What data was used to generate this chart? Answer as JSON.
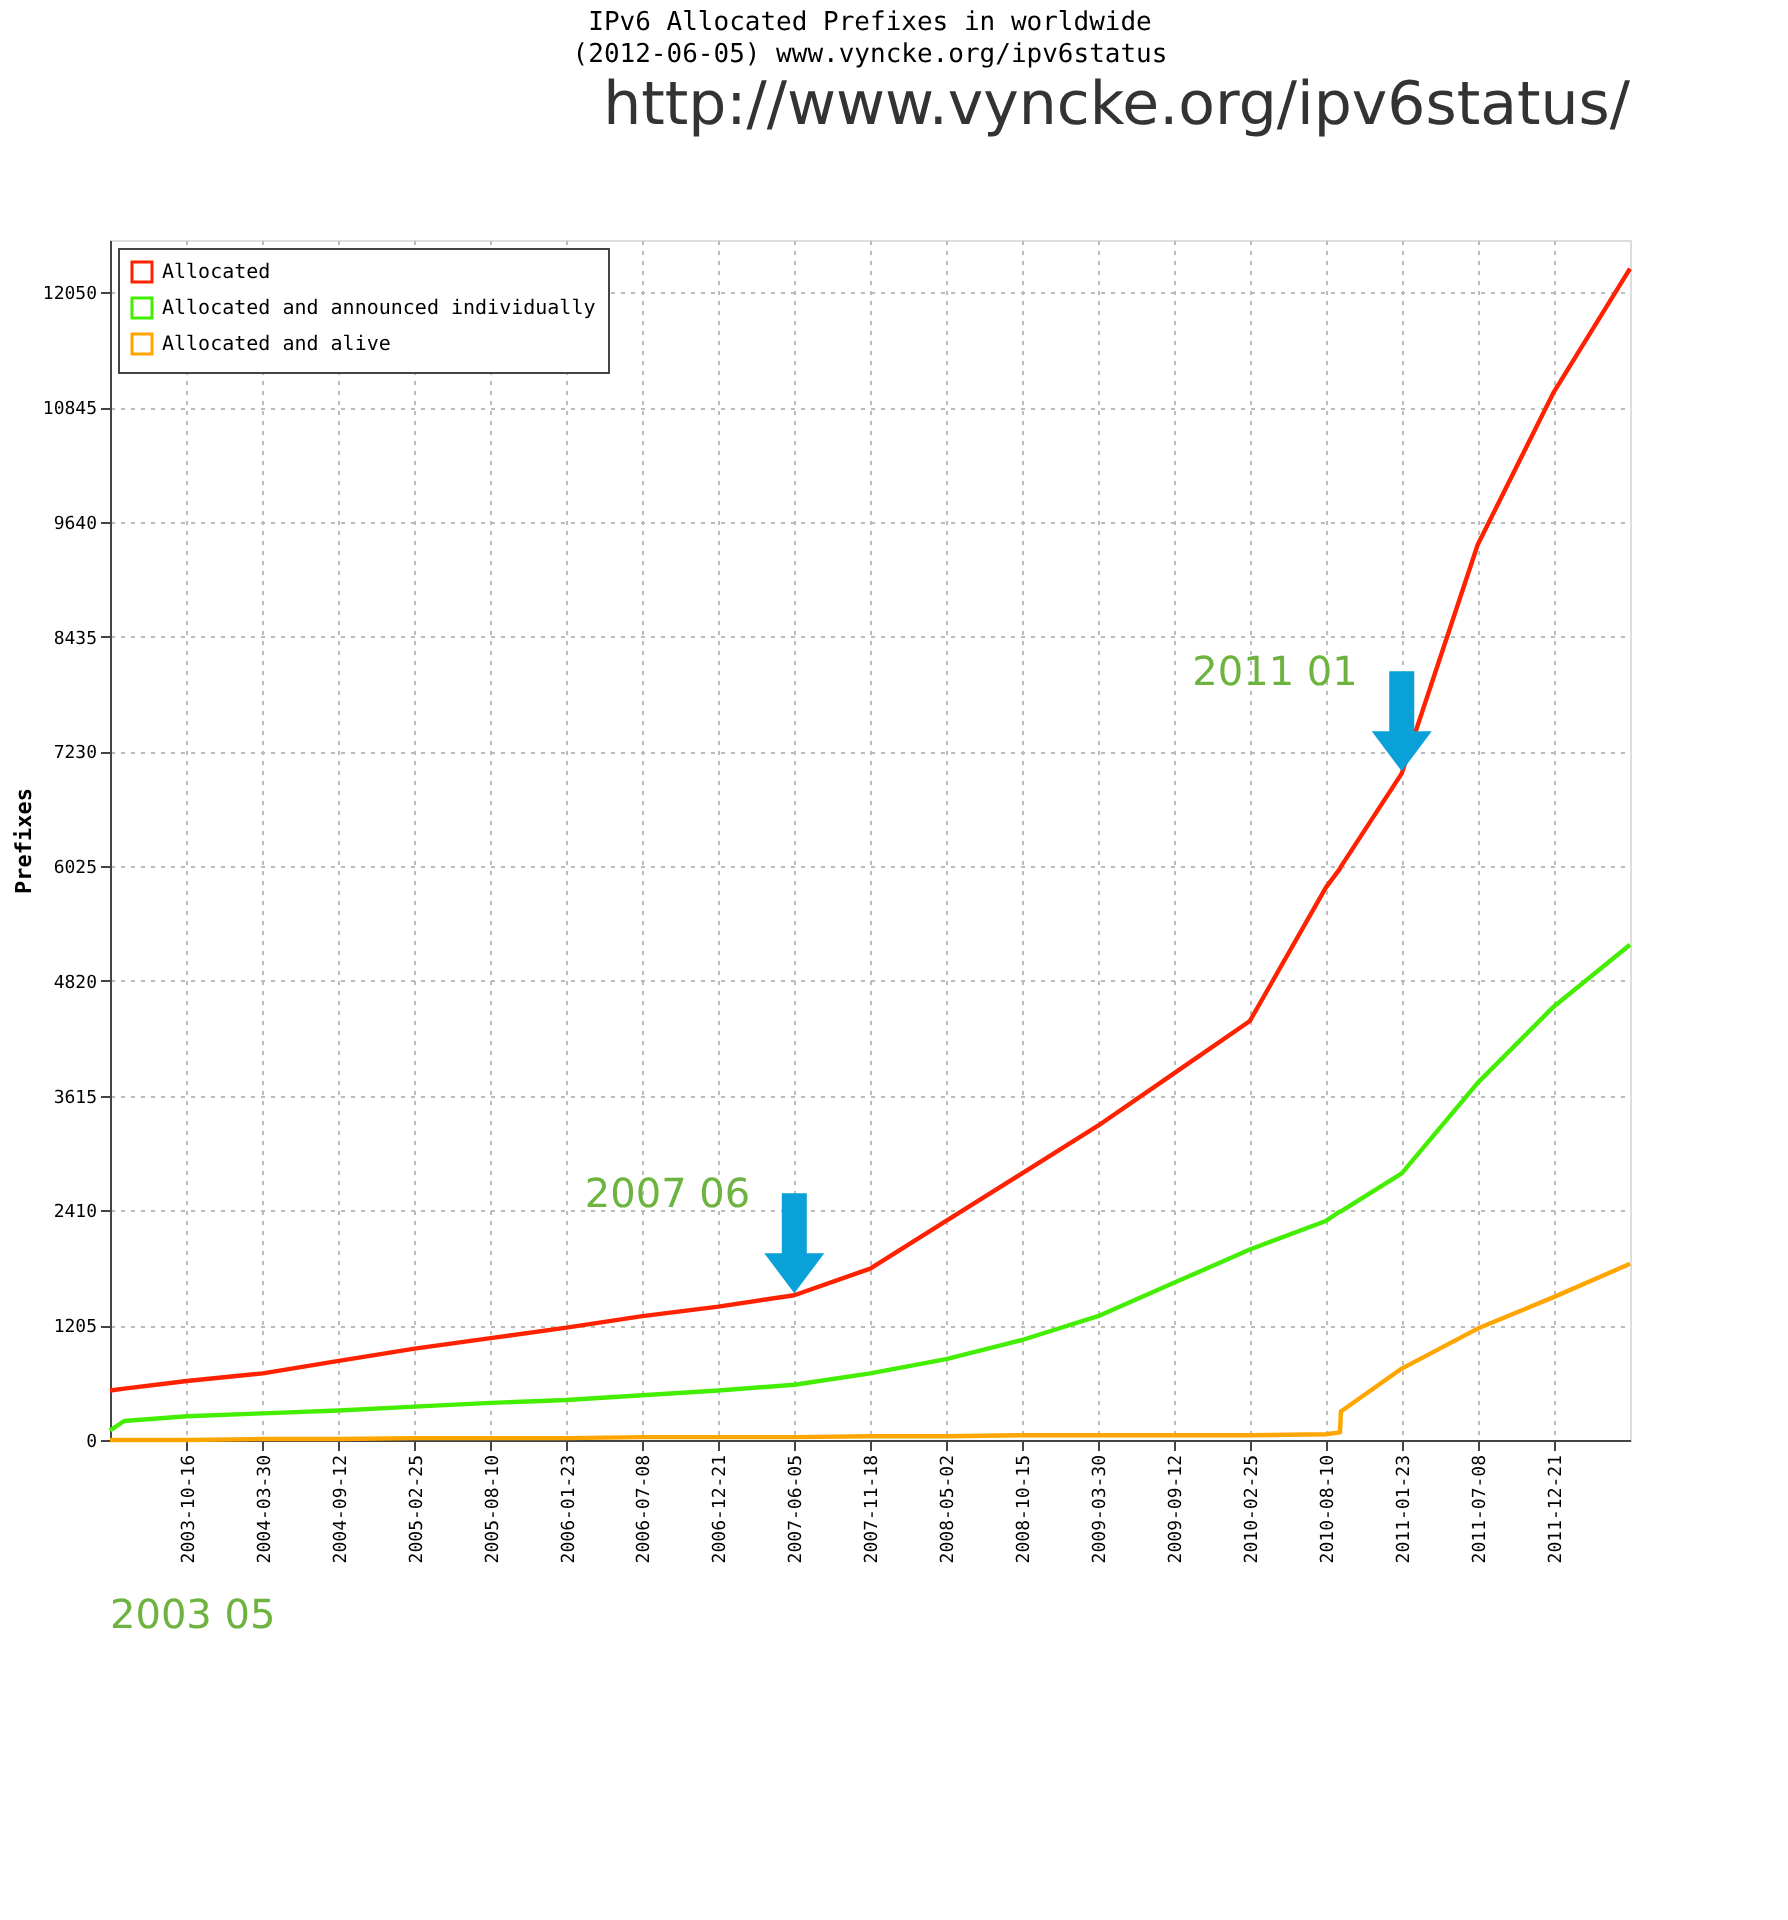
{
  "chart_data": {
    "type": "line",
    "title": "IPv6 Allocated Prefixes in worldwide",
    "subtitle": "(2012-06-05) www.vyncke.org/ipv6status",
    "ylabel": "Prefixes",
    "x": [
      "2003-05",
      "2003-06",
      "2003-10-16",
      "2004-03-30",
      "2004-09-12",
      "2005-02-25",
      "2005-08-10",
      "2006-01-23",
      "2006-07-08",
      "2006-12-21",
      "2007-06-05",
      "2007-11-18",
      "2008-05-02",
      "2008-10-15",
      "2009-03-30",
      "2009-09-12",
      "2010-02-25",
      "2010-08-10",
      "2010-09-10",
      "2010-09-12",
      "2011-01-23",
      "2011-07-08",
      "2011-12-21",
      "2012-06-05"
    ],
    "series": [
      {
        "name": "Allocated",
        "color": "#ff2200",
        "values": [
          520,
          540,
          620,
          700,
          830,
          960,
          1070,
          1180,
          1300,
          1400,
          1520,
          1800,
          2300,
          2800,
          3300,
          3850,
          4400,
          5800,
          6000,
          6020,
          7000,
          9400,
          11000,
          12300
        ]
      },
      {
        "name": "Allocated and announced individually",
        "color": "#44ee00",
        "values": [
          100,
          200,
          250,
          280,
          310,
          350,
          390,
          420,
          470,
          520,
          580,
          700,
          850,
          1050,
          1300,
          1650,
          2000,
          2300,
          2400,
          2400,
          2800,
          3750,
          4550,
          5200
        ]
      },
      {
        "name": "Allocated and alive",
        "color": "#ffa500",
        "values": [
          0,
          0,
          0,
          10,
          10,
          20,
          20,
          20,
          30,
          30,
          30,
          40,
          40,
          50,
          50,
          50,
          50,
          60,
          80,
          300,
          750,
          1170,
          1500,
          1850
        ]
      }
    ],
    "xlim": [
      "2003-05",
      "2012-06-05"
    ],
    "xticks": [
      "2003-10-16",
      "2004-03-30",
      "2004-09-12",
      "2005-02-25",
      "2005-08-10",
      "2006-01-23",
      "2006-07-08",
      "2006-12-21",
      "2007-06-05",
      "2007-11-18",
      "2008-05-02",
      "2008-10-15",
      "2009-03-30",
      "2009-09-12",
      "2010-02-25",
      "2010-08-10",
      "2011-01-23",
      "2011-07-08",
      "2011-12-21"
    ],
    "ylim": [
      0,
      12600
    ],
    "yticks": [
      0,
      1205,
      2410,
      3615,
      4820,
      6025,
      7230,
      8435,
      9640,
      10845,
      12050
    ],
    "grid": true,
    "legend": "top left",
    "marker": "none",
    "line_style": "solid",
    "annotations": [
      "http://www.vyncke.org/ipv6status/",
      "2003 05",
      {
        "text": "2007 06",
        "x": "2007-06-05",
        "y": 1520
      },
      {
        "text": "2011 01",
        "x": "2011-01-23",
        "y": 7000
      }
    ]
  }
}
